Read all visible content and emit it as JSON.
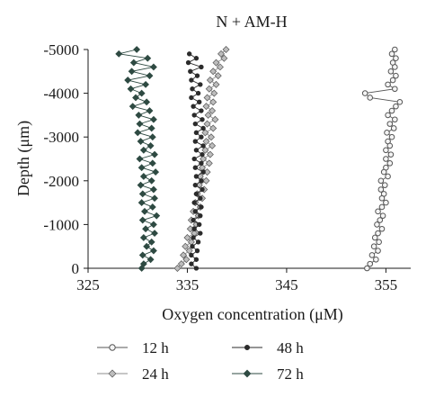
{
  "chart_data": {
    "type": "line",
    "title": "N + AM-H",
    "xlabel": "Oxygen concentration (μM)",
    "ylabel": "Depth (μm)",
    "xlim": [
      325,
      357.5
    ],
    "ylim": [
      0,
      -5000
    ],
    "xticks": [
      325,
      335,
      345,
      355
    ],
    "yticks": [
      -5000,
      -4000,
      -3000,
      -2000,
      -1000,
      0
    ],
    "grid": false,
    "legend_position": "bottom",
    "series": [
      {
        "name": "12 h",
        "marker": "open-circle",
        "color": "#555555",
        "y": [
          -5000,
          -4900,
          -4800,
          -4700,
          -4600,
          -4500,
          -4400,
          -4300,
          -4200,
          -4100,
          -4000,
          -3900,
          -3800,
          -3700,
          -3600,
          -3500,
          -3400,
          -3300,
          -3200,
          -3100,
          -3000,
          -2900,
          -2800,
          -2700,
          -2600,
          -2500,
          -2400,
          -2300,
          -2200,
          -2100,
          -2000,
          -1900,
          -1800,
          -1700,
          -1600,
          -1500,
          -1400,
          -1300,
          -1200,
          -1100,
          -1000,
          -900,
          -800,
          -700,
          -600,
          -500,
          -400,
          -300,
          -200,
          -100,
          0
        ],
        "x": [
          355.9,
          355.6,
          356.0,
          355.7,
          355.9,
          355.5,
          356.0,
          355.7,
          355.2,
          355.9,
          352.9,
          353.4,
          356.4,
          356.0,
          355.6,
          355.2,
          355.9,
          355.4,
          355.8,
          355.1,
          355.6,
          355.2,
          355.4,
          355.0,
          355.5,
          355.0,
          355.4,
          355.0,
          354.8,
          355.2,
          354.5,
          354.9,
          354.5,
          354.8,
          354.6,
          355.0,
          354.6,
          354.2,
          354.7,
          354.4,
          354.1,
          354.6,
          354.2,
          353.9,
          354.3,
          353.8,
          354.2,
          353.6,
          354.0,
          353.4,
          353.1
        ]
      },
      {
        "name": "24 h",
        "marker": "diamond",
        "color": "#8c8c8c",
        "y": [
          -5000,
          -4900,
          -4800,
          -4700,
          -4600,
          -4500,
          -4400,
          -4300,
          -4200,
          -4100,
          -4000,
          -3900,
          -3800,
          -3700,
          -3600,
          -3500,
          -3400,
          -3300,
          -3200,
          -3100,
          -3000,
          -2900,
          -2800,
          -2700,
          -2600,
          -2500,
          -2400,
          -2300,
          -2200,
          -2100,
          -2000,
          -1900,
          -1800,
          -1700,
          -1600,
          -1500,
          -1400,
          -1300,
          -1200,
          -1100,
          -1000,
          -900,
          -800,
          -700,
          -600,
          -500,
          -400,
          -300,
          -200,
          -100,
          0
        ],
        "x": [
          338.9,
          338.4,
          338.7,
          337.9,
          338.3,
          337.6,
          338.1,
          337.3,
          337.9,
          337.2,
          337.7,
          337.0,
          337.6,
          336.9,
          337.5,
          337.1,
          337.8,
          337.0,
          337.6,
          336.8,
          337.4,
          336.9,
          337.5,
          336.8,
          337.3,
          336.6,
          337.2,
          336.5,
          337.0,
          336.3,
          336.9,
          336.2,
          336.7,
          336.0,
          336.5,
          335.8,
          336.3,
          335.6,
          336.1,
          335.4,
          335.9,
          335.3,
          335.7,
          335.0,
          335.4,
          334.8,
          335.2,
          334.6,
          334.9,
          334.4,
          334.0
        ]
      },
      {
        "name": "48 h",
        "marker": "filled-circle",
        "color": "#2b2b2b",
        "y": [
          -4900,
          -4800,
          -4700,
          -4600,
          -4500,
          -4400,
          -4300,
          -4200,
          -4100,
          -4000,
          -3900,
          -3800,
          -3700,
          -3600,
          -3500,
          -3400,
          -3300,
          -3200,
          -3100,
          -3000,
          -2900,
          -2800,
          -2700,
          -2600,
          -2500,
          -2400,
          -2300,
          -2200,
          -2100,
          -2000,
          -1900,
          -1800,
          -1700,
          -1600,
          -1500,
          -1400,
          -1300,
          -1200,
          -1100,
          -1000,
          -900,
          -800,
          -700,
          -600,
          -500,
          -400,
          -300,
          -200,
          -100,
          0
        ],
        "x": [
          335.2,
          335.9,
          335.1,
          336.4,
          335.3,
          336.0,
          335.4,
          336.3,
          335.5,
          336.1,
          335.4,
          336.2,
          335.6,
          336.4,
          335.7,
          336.5,
          335.8,
          336.6,
          335.9,
          336.4,
          335.8,
          336.6,
          335.9,
          336.5,
          335.7,
          336.4,
          335.8,
          336.6,
          335.9,
          336.4,
          335.8,
          336.5,
          335.9,
          336.3,
          335.7,
          336.4,
          335.8,
          336.3,
          335.6,
          336.2,
          335.7,
          336.3,
          335.6,
          336.1,
          335.5,
          336.0,
          335.4,
          335.9,
          335.4,
          335.9
        ]
      },
      {
        "name": "72 h",
        "marker": "filled-diamond",
        "color": "#2e4a42",
        "y": [
          -5000,
          -4900,
          -4800,
          -4700,
          -4600,
          -4500,
          -4400,
          -4300,
          -4200,
          -4100,
          -4000,
          -3900,
          -3800,
          -3700,
          -3600,
          -3500,
          -3400,
          -3300,
          -3200,
          -3100,
          -3000,
          -2900,
          -2800,
          -2700,
          -2600,
          -2500,
          -2400,
          -2300,
          -2200,
          -2100,
          -2000,
          -1900,
          -1800,
          -1700,
          -1600,
          -1500,
          -1400,
          -1300,
          -1200,
          -1100,
          -1000,
          -900,
          -800,
          -700,
          -600,
          -500,
          -400,
          -300,
          -200,
          -100,
          0
        ],
        "x": [
          329.9,
          328.1,
          331.0,
          329.6,
          331.6,
          329.4,
          331.2,
          329.0,
          330.8,
          329.3,
          330.4,
          329.8,
          330.9,
          329.5,
          331.2,
          330.1,
          331.6,
          330.2,
          331.4,
          330.0,
          331.5,
          330.3,
          331.3,
          330.6,
          331.7,
          330.2,
          331.5,
          330.4,
          331.8,
          330.6,
          331.4,
          330.3,
          331.6,
          330.5,
          331.7,
          330.4,
          331.5,
          330.7,
          331.9,
          330.5,
          331.6,
          330.8,
          331.7,
          330.6,
          331.4,
          330.9,
          331.6,
          330.5,
          331.3,
          330.6,
          330.4
        ]
      }
    ]
  }
}
